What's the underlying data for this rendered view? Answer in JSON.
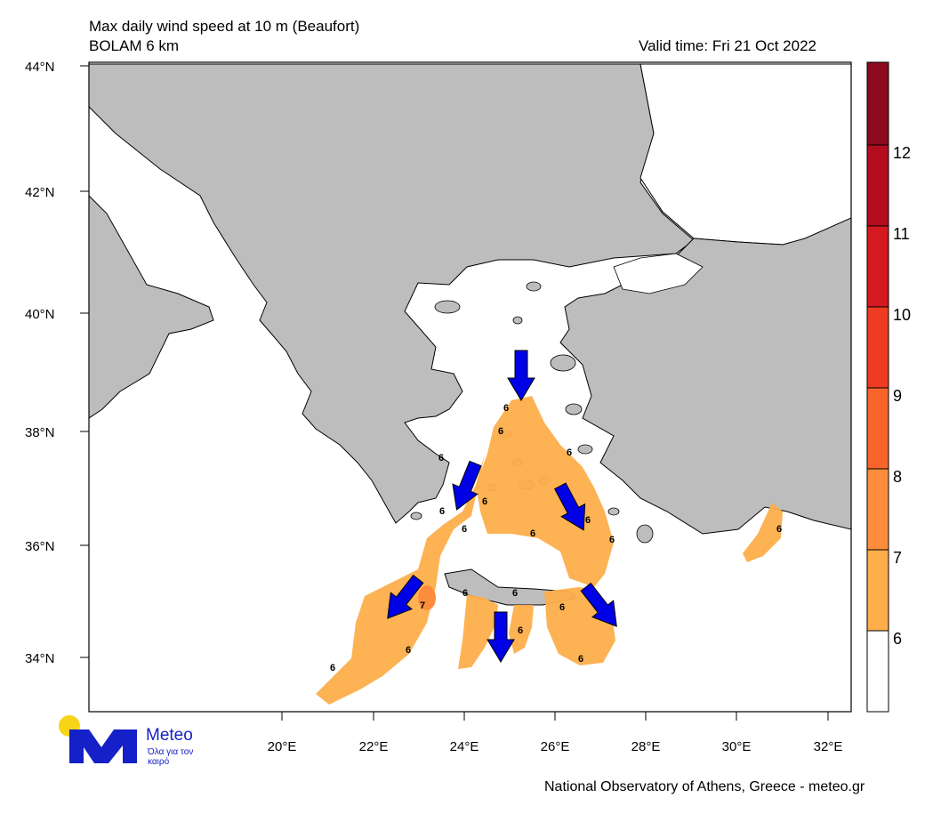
{
  "header": {
    "title": "Max daily wind speed at 10 m (Beaufort)",
    "model": "BOLAM 6 km",
    "valid_time": "Valid time: Fri 21 Oct 2022"
  },
  "map": {
    "latitude_ticks": [
      "44°N",
      "42°N",
      "40°N",
      "38°N",
      "36°N",
      "34°N"
    ],
    "longitude_ticks": [
      "20°E",
      "22°E",
      "24°E",
      "26°E",
      "28°E",
      "30°E",
      "32°E"
    ],
    "contour_labels": [
      "6",
      "6",
      "6",
      "6",
      "6",
      "6",
      "6",
      "6",
      "6",
      "6",
      "6",
      "6",
      "6",
      "6",
      "7",
      "6",
      "6",
      "6",
      "6"
    ],
    "colors": {
      "land": "#bdbdbd",
      "sea": "#ffffff",
      "wind_6_7": "#fdae4b",
      "wind_7_8": "#fd8d3c",
      "arrow": "#0000e6"
    }
  },
  "colorbar": {
    "labels": [
      "6",
      "7",
      "8",
      "9",
      "10",
      "11",
      "12"
    ],
    "colors": [
      "#ffffff",
      "#fdae4b",
      "#fd8d3c",
      "#f8652a",
      "#ee3b22",
      "#d51920",
      "#b30c1e",
      "#8c0a1e"
    ]
  },
  "logo": {
    "name": "Meteo",
    "tagline": "Όλα για τον καιρό"
  },
  "footer": {
    "credit": "National Observatory of Athens, Greece - meteo.gr"
  }
}
